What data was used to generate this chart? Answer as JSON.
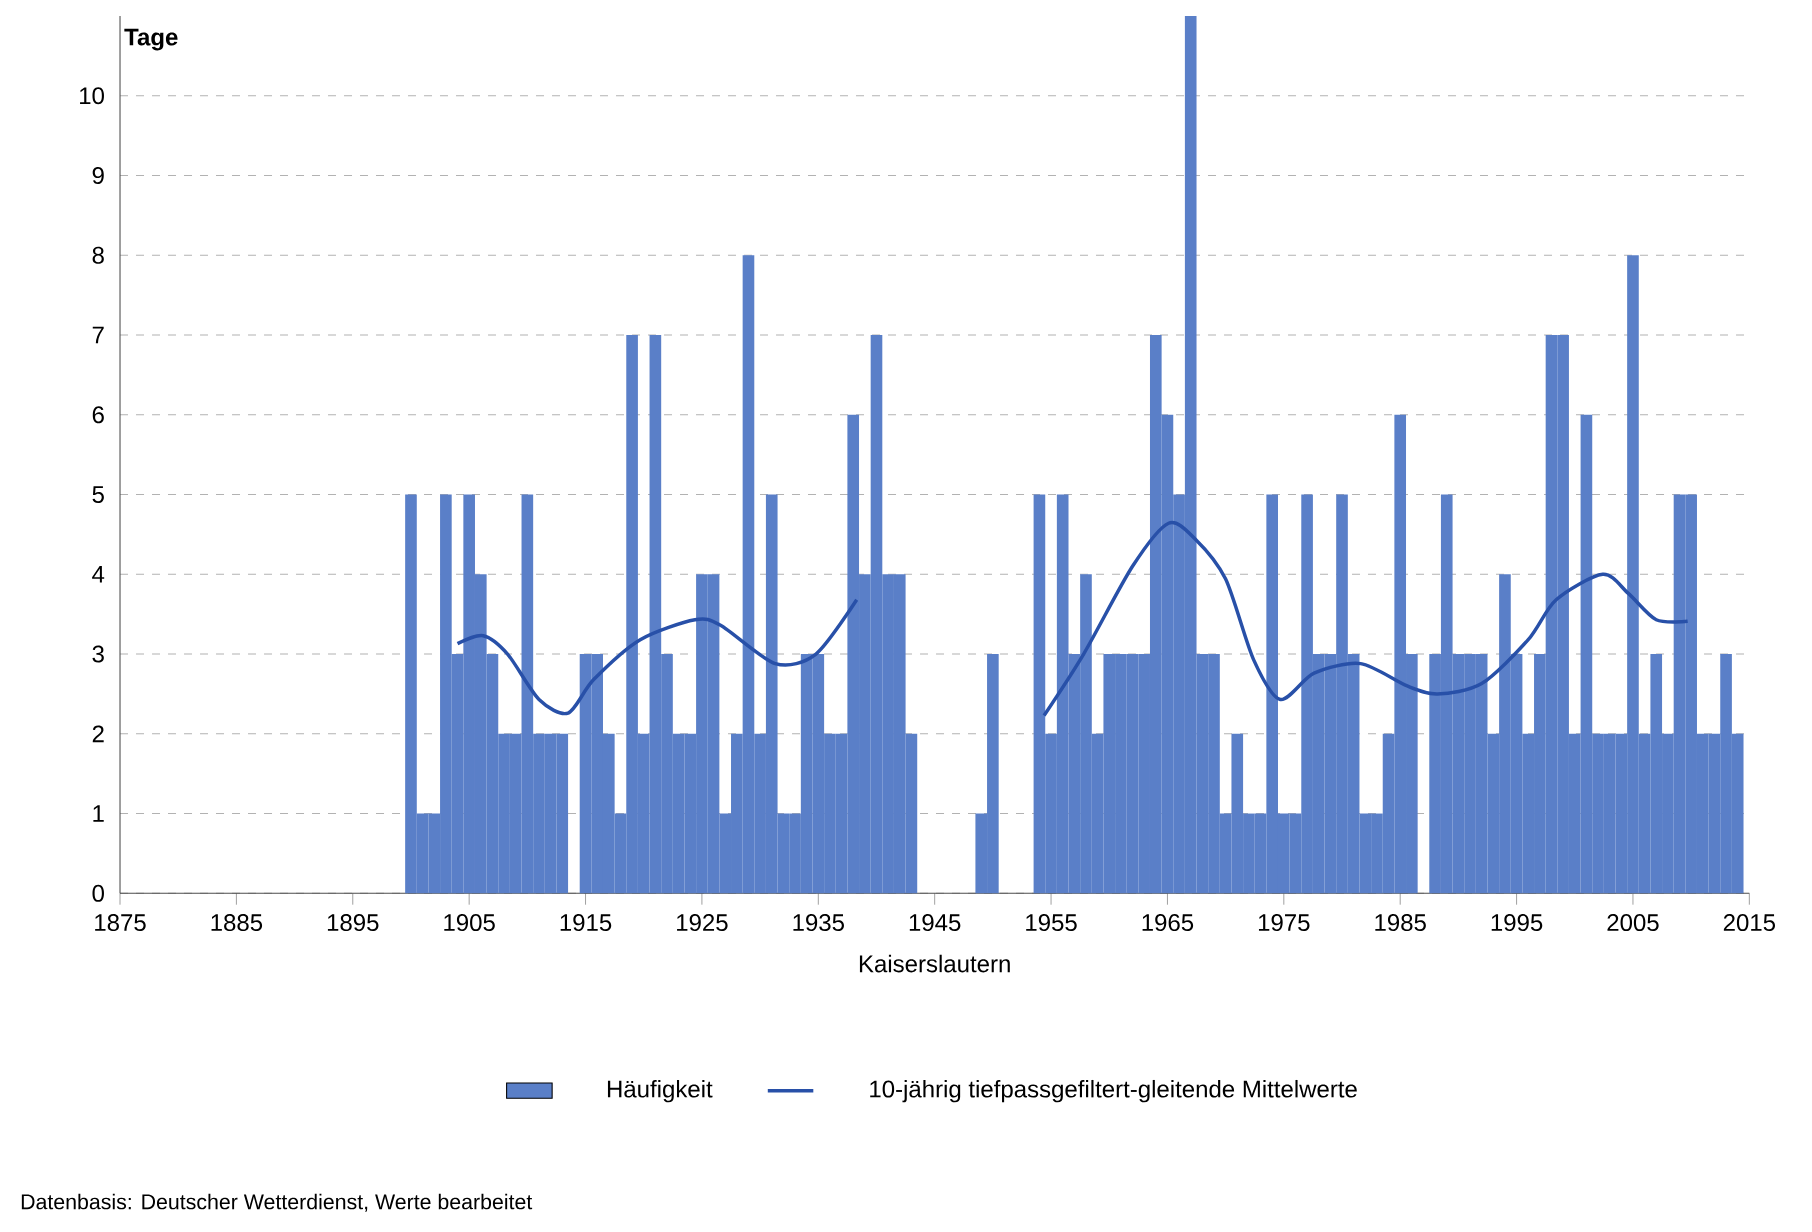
{
  "chart_data": {
    "type": "bar",
    "ylabel": "Tage",
    "xlabel": "Kaiserslautern",
    "annotations": [
      "Datenbasis: Deutscher Wetterdienst, Werte bearbeitet"
    ],
    "xlim": [
      1875,
      2015
    ],
    "xticks": [
      1875,
      1885,
      1895,
      1905,
      1915,
      1925,
      1935,
      1945,
      1955,
      1965,
      1975,
      1985,
      1995,
      2005,
      2015
    ],
    "ylim": [
      0,
      11
    ],
    "yticks": [
      0,
      1,
      2,
      3,
      4,
      5,
      6,
      7,
      8,
      9,
      10
    ],
    "grid": "y",
    "legend": "bottom",
    "series": [
      {
        "name": "Häufigkeit",
        "color": "#5a7fc8",
        "x": [
          1900,
          1901,
          1902,
          1903,
          1904,
          1905,
          1906,
          1907,
          1908,
          1909,
          1910,
          1911,
          1912,
          1913,
          1914,
          1915,
          1916,
          1917,
          1918,
          1919,
          1920,
          1921,
          1922,
          1923,
          1924,
          1925,
          1926,
          1927,
          1928,
          1929,
          1930,
          1931,
          1932,
          1933,
          1934,
          1935,
          1936,
          1937,
          1938,
          1939,
          1940,
          1941,
          1942,
          1943,
          1944,
          1945,
          1946,
          1947,
          1948,
          1949,
          1950,
          1951,
          1952,
          1953,
          1954,
          1955,
          1956,
          1957,
          1958,
          1959,
          1960,
          1961,
          1962,
          1963,
          1964,
          1965,
          1966,
          1967,
          1968,
          1969,
          1970,
          1971,
          1972,
          1973,
          1974,
          1975,
          1976,
          1977,
          1978,
          1979,
          1980,
          1981,
          1982,
          1983,
          1984,
          1985,
          1986,
          1987,
          1988,
          1989,
          1990,
          1991,
          1992,
          1993,
          1994,
          1995,
          1996,
          1997,
          1998,
          1999,
          2000,
          2001,
          2002,
          2003,
          2004,
          2005,
          2006,
          2007,
          2008,
          2009,
          2010,
          2011,
          2012,
          2013,
          2014
        ],
        "values": [
          5,
          1,
          1,
          5,
          3,
          5,
          4,
          3,
          2,
          2,
          5,
          2,
          2,
          2,
          0,
          3,
          3,
          2,
          1,
          7,
          2,
          7,
          3,
          2,
          2,
          4,
          4,
          1,
          2,
          8,
          2,
          5,
          1,
          1,
          3,
          3,
          2,
          2,
          6,
          4,
          7,
          4,
          4,
          2,
          0,
          0,
          0,
          0,
          0,
          1,
          3,
          0,
          0,
          0,
          5,
          2,
          5,
          3,
          4,
          2,
          3,
          3,
          3,
          3,
          7,
          6,
          5,
          11,
          3,
          3,
          1,
          2,
          1,
          1,
          5,
          1,
          1,
          5,
          3,
          3,
          5,
          3,
          1,
          1,
          2,
          6,
          3,
          0,
          3,
          5,
          3,
          3,
          3,
          2,
          4,
          3,
          2,
          3,
          7,
          7,
          2,
          6,
          2,
          2,
          2,
          8,
          2,
          3,
          2,
          5,
          5,
          2,
          2,
          3,
          2
        ]
      },
      {
        "name": "10-jährig tiefpassgefiltert-gleitende Mittelwerte",
        "type": "line",
        "color": "#2850a8",
        "x": [
          1904,
          1906.2,
          1908.3,
          1911,
          1913.5,
          1915.7,
          1919.7,
          1924.4,
          1926.6,
          1931.3,
          1934.8,
          1938.3,
          1946,
          1954.4,
          1957.8,
          1962,
          1965.1,
          1967.4,
          1970,
          1972.4,
          1974.7,
          1977.6,
          1981.6,
          1985.6,
          1988.2,
          1992,
          1996,
          1998.4,
          2002.4,
          2004.6,
          2007,
          2009.7
        ],
        "values": [
          3.13,
          3.23,
          3.0,
          2.43,
          2.26,
          2.68,
          3.18,
          3.43,
          3.36,
          2.88,
          3.0,
          3.68,
          null,
          2.23,
          3.0,
          4.1,
          4.64,
          4.44,
          3.94,
          2.93,
          2.43,
          2.76,
          2.88,
          2.6,
          2.5,
          2.63,
          3.18,
          3.68,
          4.0,
          3.76,
          3.43,
          3.41
        ]
      }
    ]
  }
}
